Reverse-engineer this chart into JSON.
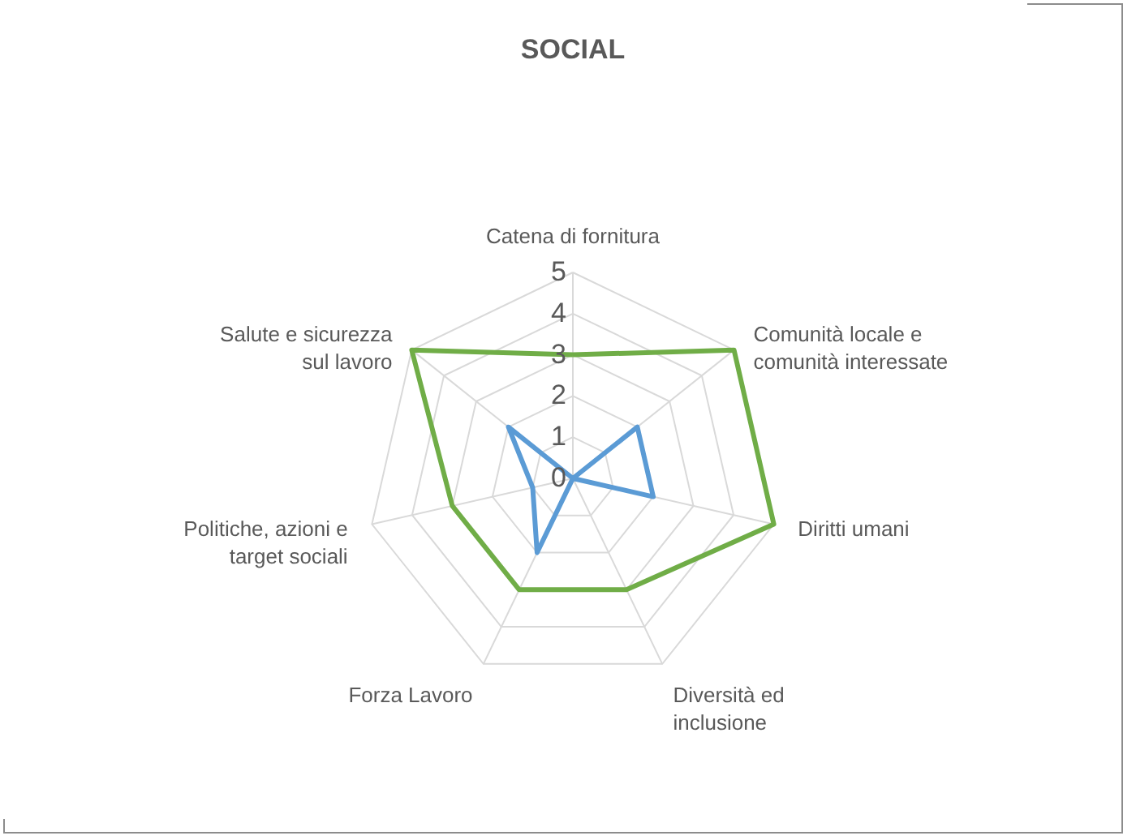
{
  "chart_data": {
    "type": "radar",
    "title": "SOCIAL",
    "categories": [
      "Catena di fornitura",
      "Comunità locale  e comunità interessate",
      "Diritti umani",
      "Diversità ed inclusione",
      "Forza Lavoro",
      "Politiche, azioni e target sociali",
      "Salute e sicurezza sul lavoro"
    ],
    "series": [
      {
        "color": "#70ad47",
        "values": [
          3,
          5,
          5,
          3,
          3,
          3,
          5
        ]
      },
      {
        "color": "#5b9bd5",
        "values": [
          0,
          2,
          2,
          0,
          2,
          1,
          2
        ]
      }
    ],
    "ylim": [
      0,
      5
    ],
    "yticks": [
      0,
      1,
      2,
      3,
      4,
      5
    ],
    "grid": true
  }
}
